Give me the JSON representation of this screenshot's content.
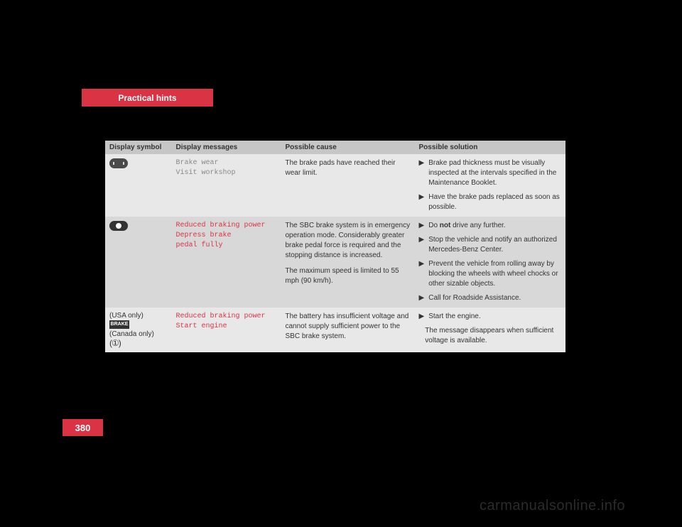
{
  "chapter_label": "Practical hints",
  "page_number": "380",
  "watermark": "carmanualsonline.info",
  "table": {
    "headers": {
      "symbol": "Display symbol",
      "messages": "Display messages",
      "cause": "Possible cause",
      "solution": "Possible solution"
    },
    "rows": [
      {
        "icon": "brake-wear",
        "message_lines": [
          "Brake wear",
          "Visit workshop"
        ],
        "message_style": "mono-text",
        "cause_paras": [
          "The brake pads have reached their wear limit."
        ],
        "solutions": [
          "Brake pad thickness must be visually inspected at the intervals specified in the Maintenance Booklet.",
          "Have the brake pads replaced as soon as possible."
        ]
      },
      {
        "icon": "circle-warn",
        "message_lines": [
          "Reduced braking power",
          "Depress brake",
          "pedal fully"
        ],
        "message_style": "mono-red",
        "cause_paras": [
          "The SBC brake system is in emergency operation mode. Considerably greater brake pedal force is required and the stopping distance is increased.",
          "The maximum speed is limited to 55 mph (90 km/h)."
        ],
        "solutions_rich": [
          {
            "prefix": "Do ",
            "bold": "not",
            "suffix": " drive any further."
          },
          {
            "text": "Stop the vehicle and notify an authorized Mercedes-Benz Center."
          },
          {
            "text": "Prevent the vehicle from rolling away by blocking the wheels with wheel chocks or other sizable objects."
          },
          {
            "text": "Call for Roadside Assistance."
          }
        ]
      },
      {
        "icon": "usa-canada",
        "icon_labels": {
          "usa": "(USA only)",
          "canada": "(Canada only)",
          "brake_text": "BRAKE"
        },
        "message_lines": [
          "Reduced braking power",
          "Start engine"
        ],
        "message_style": "mono-red",
        "cause_paras": [
          "The battery has insufficient voltage and cannot supply sufficient power to the SBC brake system."
        ],
        "solutions": [
          "Start the engine."
        ],
        "solution_trailing": "The message disappears when sufficient voltage is available."
      }
    ]
  }
}
